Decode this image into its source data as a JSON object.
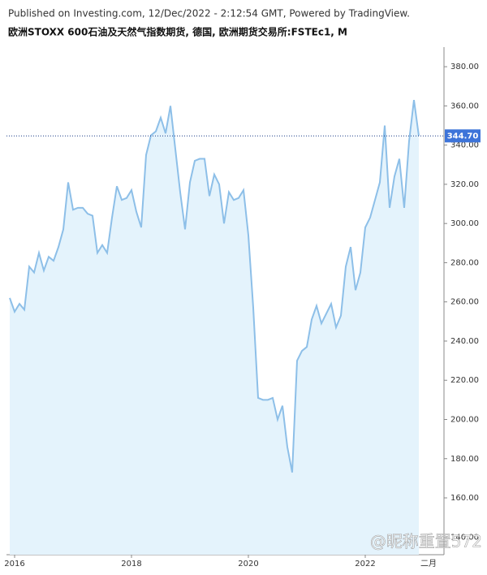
{
  "header": "Published on Investing.com, 12/Dec/2022 - 2:12:54 GMT, Powered by TradingView.",
  "chart_data": {
    "type": "area",
    "title": "欧洲STOXX 600石油及天然气指数期货, 德国, 欧洲期货交易所:FSTEc1, M",
    "categories": [
      null,
      "2016",
      null,
      null,
      null,
      null,
      null,
      null,
      null,
      null,
      null,
      null,
      null,
      null,
      null,
      null,
      null,
      null,
      null,
      null,
      null,
      null,
      null,
      null,
      null,
      "2018",
      null,
      null,
      null,
      null,
      null,
      null,
      null,
      null,
      null,
      null,
      null,
      null,
      null,
      null,
      null,
      null,
      null,
      null,
      null,
      null,
      null,
      null,
      null,
      "2020",
      null,
      null,
      null,
      null,
      null,
      null,
      null,
      null,
      null,
      null,
      null,
      null,
      null,
      null,
      null,
      null,
      null,
      null,
      null,
      null,
      null,
      null,
      null,
      "2022",
      null,
      null,
      null,
      null,
      null,
      null,
      null,
      null,
      null,
      null,
      null
    ],
    "x_end_label": "二月",
    "values": [
      262,
      255,
      259,
      256,
      278,
      275,
      285,
      276,
      283,
      281,
      288,
      297,
      321,
      307,
      308,
      308,
      305,
      304,
      285,
      289,
      285,
      303,
      319,
      312,
      313,
      317,
      306,
      298,
      335,
      345,
      347,
      354,
      346,
      360,
      338,
      316,
      297,
      321,
      332,
      333,
      333,
      314,
      325,
      320,
      300,
      316,
      312,
      313,
      317,
      294,
      257,
      211,
      210,
      210,
      211,
      200,
      207,
      186,
      173,
      230,
      235,
      237,
      251,
      258,
      249,
      254,
      259,
      247,
      253,
      278,
      288,
      266,
      275,
      298,
      303,
      312,
      321,
      350,
      308,
      324,
      333,
      308,
      342,
      363,
      344.7
    ],
    "last_value_label": {
      "value": 344.7,
      "label": "344.70"
    },
    "color": "#8dbfe8",
    "fill": "#e4f3fc",
    "ylim": [
      131,
      390
    ],
    "yticks": [
      {
        "value": 140,
        "label": "140.00"
      },
      {
        "value": 160,
        "label": "160.00"
      },
      {
        "value": 180,
        "label": "180.00"
      },
      {
        "value": 200,
        "label": "200.00"
      },
      {
        "value": 220,
        "label": "220.00"
      },
      {
        "value": 240,
        "label": "240.00"
      },
      {
        "value": 260,
        "label": "260.00"
      },
      {
        "value": 280,
        "label": "280.00"
      },
      {
        "value": 300,
        "label": "300.00"
      },
      {
        "value": 320,
        "label": "320.00"
      },
      {
        "value": 340,
        "label": "340.00"
      },
      {
        "value": 360,
        "label": "360.00"
      },
      {
        "value": 380,
        "label": "380.00"
      }
    ]
  },
  "watermark": "@昵称重置572"
}
